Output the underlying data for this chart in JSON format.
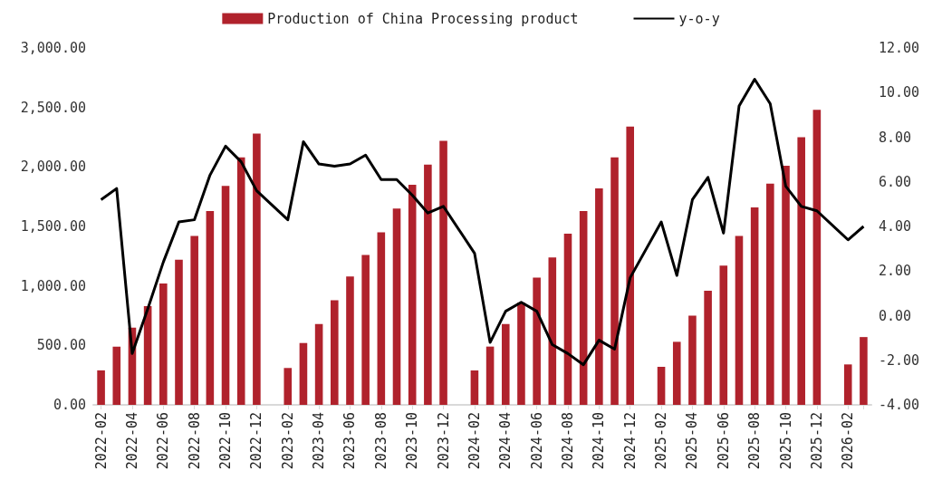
{
  "chart_data": {
    "type": "bar",
    "categories": [
      "2022-02",
      null,
      "2022-04",
      null,
      "2022-06",
      null,
      "2022-08",
      null,
      "2022-10",
      null,
      "2022-12",
      null,
      "2023-02",
      null,
      "2023-04",
      null,
      "2023-06",
      null,
      "2023-08",
      null,
      "2023-10",
      null,
      "2023-12",
      null,
      "2024-02",
      null,
      "2024-04",
      null,
      "2024-06",
      null,
      "2024-08",
      null,
      "2024-10",
      null,
      "2024-12",
      null,
      "2025-02",
      null,
      "2025-04",
      null,
      "2025-06",
      null,
      "2025-08",
      null,
      "2025-10",
      null,
      "2025-12",
      null,
      "2026-02",
      null
    ],
    "series": [
      {
        "name": "Production of China Processing product",
        "color": "#b0222c",
        "values": [
          290,
          490,
          650,
          830,
          1020,
          1220,
          1420,
          1630,
          1840,
          2080,
          2280,
          null,
          310,
          520,
          680,
          880,
          1080,
          1260,
          1450,
          1650,
          1850,
          2020,
          2220,
          null,
          290,
          490,
          680,
          860,
          1070,
          1240,
          1440,
          1630,
          1820,
          2080,
          2340,
          null,
          320,
          530,
          750,
          960,
          1170,
          1420,
          1660,
          1860,
          2010,
          2250,
          2480,
          null,
          340,
          570
        ]
      },
      {
        "name": "y-o-y",
        "type": "line",
        "axis": "y2",
        "color": "#000000",
        "values": [
          5.2,
          5.7,
          -1.7,
          0.3,
          2.4,
          4.2,
          4.3,
          6.3,
          7.6,
          6.9,
          5.6,
          null,
          4.3,
          7.8,
          6.8,
          6.7,
          6.8,
          7.2,
          6.1,
          6.1,
          5.4,
          4.6,
          4.9,
          null,
          2.8,
          -1.2,
          0.2,
          0.6,
          0.2,
          -1.3,
          -1.7,
          -2.2,
          -1.1,
          -1.5,
          1.7,
          null,
          4.2,
          1.8,
          5.2,
          6.2,
          3.7,
          9.4,
          10.6,
          9.5,
          5.8,
          4.9,
          4.7,
          null,
          3.4,
          4.0
        ]
      }
    ],
    "ylim": [
      0,
      3000
    ],
    "yticks": [
      {
        "value": 0,
        "label": "0.00"
      },
      {
        "value": 500,
        "label": "500.00"
      },
      {
        "value": 1000,
        "label": "1,000.00"
      },
      {
        "value": 1500,
        "label": "1,500.00"
      },
      {
        "value": 2000,
        "label": "2,000.00"
      },
      {
        "value": 2500,
        "label": "2,500.00"
      },
      {
        "value": 3000,
        "label": "3,000.00"
      }
    ],
    "y2lim": [
      -4,
      12
    ],
    "y2ticks": [
      {
        "value": -4,
        "label": "-4.00"
      },
      {
        "value": -2,
        "label": "-2.00"
      },
      {
        "value": 0,
        "label": "0.00"
      },
      {
        "value": 2,
        "label": "2.00"
      },
      {
        "value": 4,
        "label": "4.00"
      },
      {
        "value": 6,
        "label": "6.00"
      },
      {
        "value": 8,
        "label": "8.00"
      },
      {
        "value": 10,
        "label": "10.00"
      },
      {
        "value": 12,
        "label": "12.00"
      }
    ],
    "grid": false,
    "legend": "top",
    "marker": "none",
    "line_style": "solid"
  }
}
